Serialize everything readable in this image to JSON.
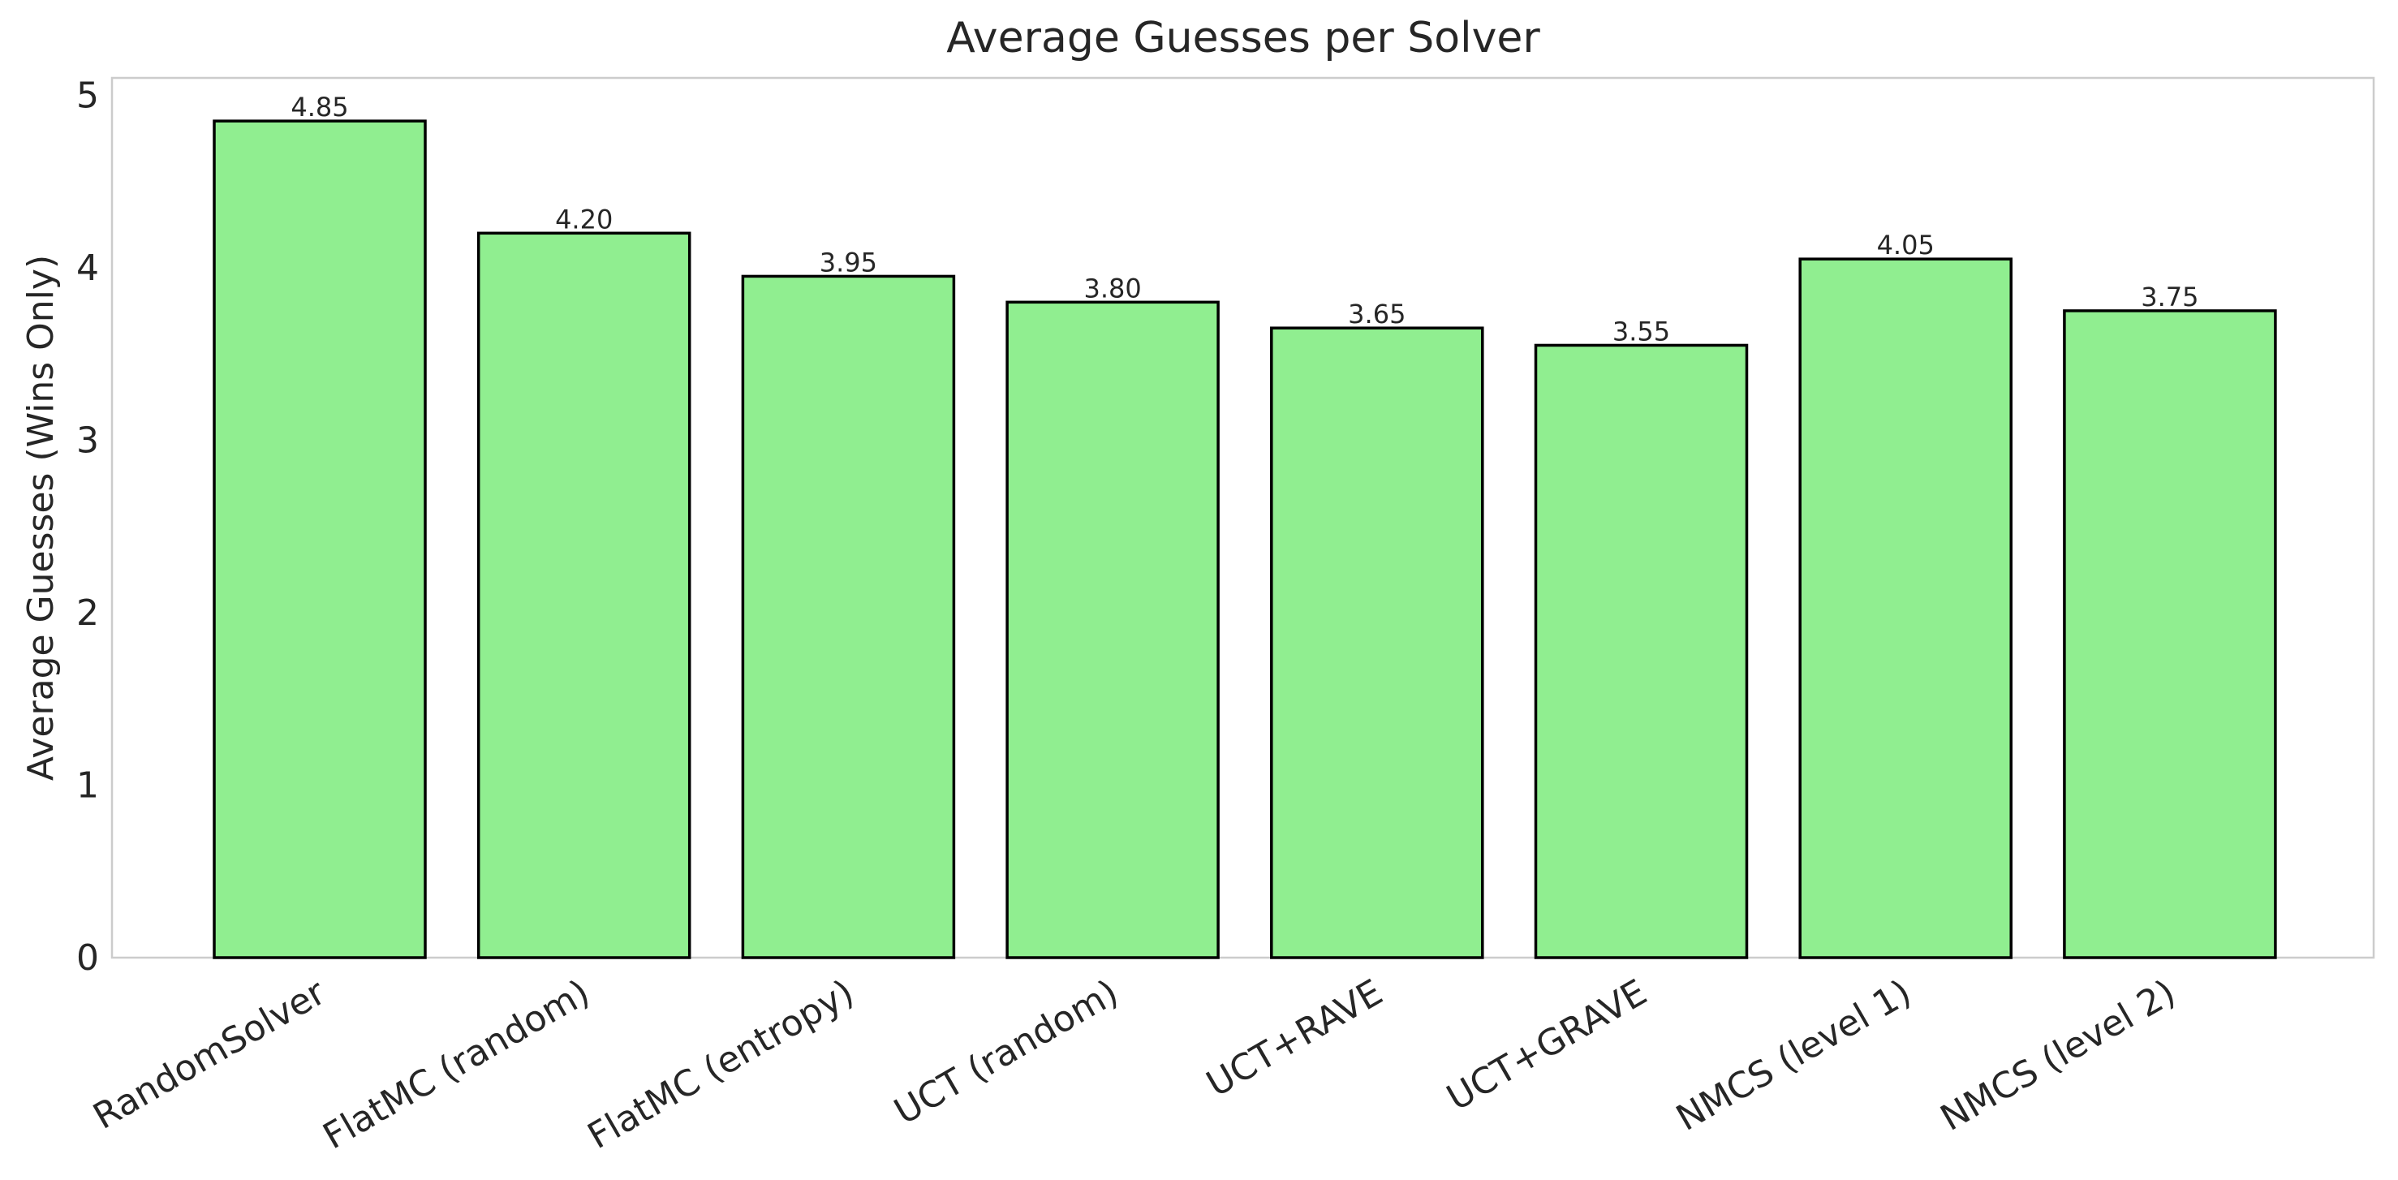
{
  "chart_data": {
    "type": "bar",
    "title": "Average Guesses per Solver",
    "xlabel": "",
    "ylabel": "Average Guesses (Wins Only)",
    "categories": [
      "RandomSolver",
      "FlatMC (random)",
      "FlatMC (entropy)",
      "UCT (random)",
      "UCT+RAVE",
      "UCT+GRAVE",
      "NMCS (level 1)",
      "NMCS (level 2)"
    ],
    "values": [
      4.85,
      4.2,
      3.95,
      3.8,
      3.65,
      3.55,
      4.05,
      3.75
    ],
    "value_labels": [
      "4.85",
      "4.20",
      "3.95",
      "3.80",
      "3.65",
      "3.55",
      "4.05",
      "3.75"
    ],
    "ylim": [
      0,
      5.1
    ],
    "yticks": [
      "0",
      "1",
      "2",
      "3",
      "4",
      "5"
    ],
    "grid": false,
    "legend": "none",
    "colors": {
      "bar_fill": "#90ee90",
      "bar_edge": "#000000",
      "axes_border": "#cccccc",
      "text": "#262626",
      "background": "#ffffff"
    }
  }
}
